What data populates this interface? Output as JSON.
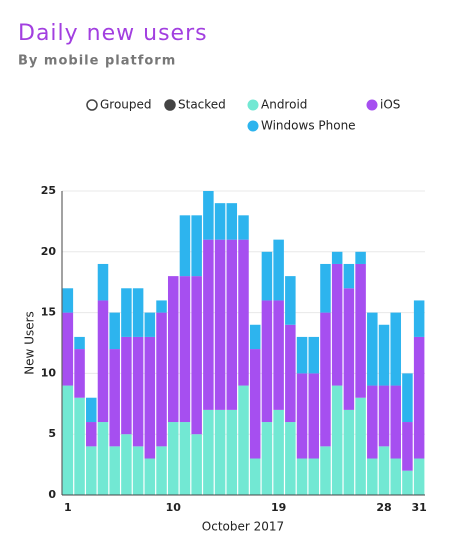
{
  "chart_data": {
    "type": "stacked_bar",
    "title": "Daily new users",
    "subtitle": "By mobile platform",
    "modes": [
      "Grouped",
      "Stacked"
    ],
    "selected_mode": "Stacked",
    "x_label": "October 2017",
    "y_label": "New Users",
    "categories": [
      "1",
      null,
      null,
      null,
      null,
      null,
      null,
      null,
      null,
      "10",
      null,
      null,
      null,
      null,
      null,
      null,
      null,
      null,
      "19",
      null,
      null,
      null,
      null,
      null,
      null,
      null,
      null,
      "28",
      null,
      null,
      "31"
    ],
    "series": [
      {
        "name": "Android",
        "color": "#72e8d3",
        "values": [
          9,
          8,
          4,
          6,
          4,
          5,
          4,
          3,
          4,
          6,
          6,
          5,
          7,
          7,
          7,
          9,
          3,
          6,
          7,
          6,
          3,
          3,
          4,
          9,
          7,
          8,
          3,
          4,
          3,
          2,
          3
        ]
      },
      {
        "name": "iOS",
        "color": "#a64ff0",
        "values": [
          6,
          4,
          2,
          10,
          8,
          8,
          9,
          10,
          11,
          12,
          12,
          13,
          14,
          14,
          14,
          12,
          9,
          10,
          9,
          8,
          7,
          7,
          11,
          10,
          10,
          11,
          6,
          5,
          6,
          4,
          10
        ]
      },
      {
        "name": "Windows Phone",
        "color": "#2db4ee",
        "values": [
          2,
          1,
          2,
          3,
          3,
          4,
          4,
          2,
          1,
          0,
          5,
          5,
          4,
          3,
          3,
          2,
          2,
          4,
          5,
          4,
          3,
          3,
          4,
          1,
          2,
          1,
          6,
          5,
          6,
          4,
          3
        ]
      }
    ],
    "ylim": [
      0,
      25
    ],
    "yticks": [
      0,
      5,
      10,
      15,
      20,
      25
    ],
    "grid": true
  }
}
